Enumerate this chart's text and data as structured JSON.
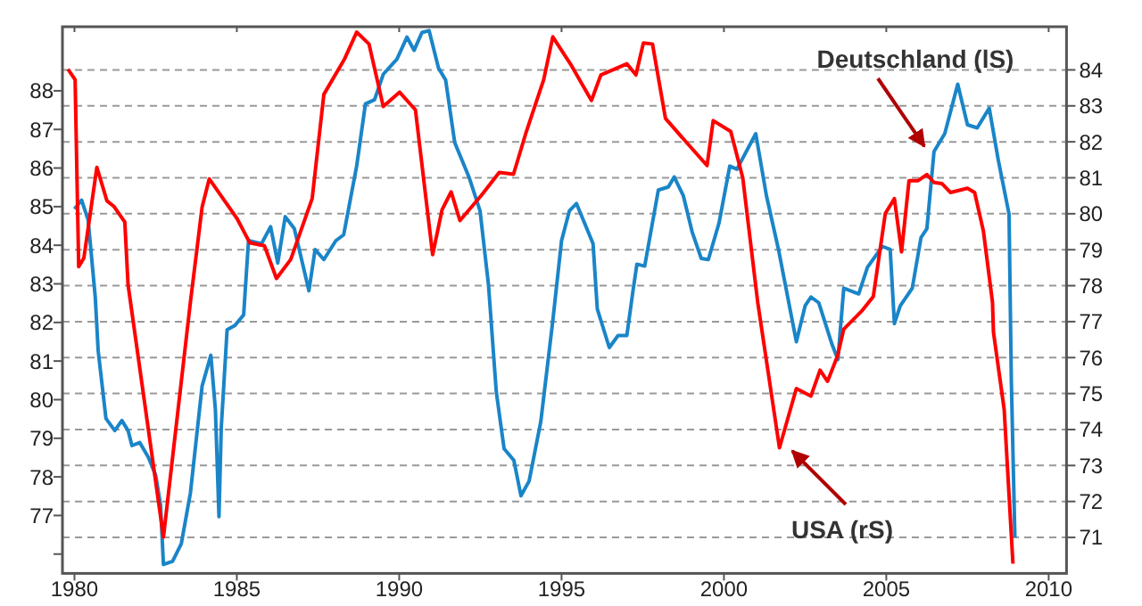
{
  "chart_data": {
    "type": "line",
    "xlim": [
      1979.63,
      2010.55
    ],
    "xticks": [
      1980,
      1985,
      1990,
      1995,
      2000,
      2005,
      2010
    ],
    "ylim": [
      75.5,
      89.66
    ],
    "yticks": [
      {
        "value": 76,
        "label": null
      },
      77,
      78,
      79,
      80,
      81,
      82,
      83,
      84,
      85,
      86,
      87,
      88
    ],
    "y2lim": [
      70,
      85.2
    ],
    "y2ticks": [
      71,
      72,
      73,
      74,
      75,
      76,
      77,
      78,
      79,
      80,
      81,
      82,
      83,
      84
    ],
    "grid": "y",
    "marker": "none",
    "line_style": "solid",
    "annotations": [
      "Deutschland (lS)",
      "USA (rS)"
    ],
    "series": [
      {
        "color": "#1a85c8",
        "axis": "y",
        "x": [
          1980.0,
          1980.22,
          1980.42,
          1980.64,
          1980.73,
          1980.97,
          1981.24,
          1981.46,
          1981.65,
          1981.77,
          1982.01,
          1982.28,
          1982.5,
          1982.65,
          1982.74,
          1983.02,
          1983.29,
          1983.57,
          1983.93,
          1984.2,
          1984.34,
          1984.45,
          1984.52,
          1984.7,
          1984.94,
          1985.21,
          1985.36,
          1985.76,
          1986.04,
          1986.26,
          1986.49,
          1986.77,
          1987.22,
          1987.41,
          1987.68,
          1988.05,
          1988.29,
          1988.69,
          1988.96,
          1989.24,
          1989.51,
          1989.93,
          1990.24,
          1990.46,
          1990.7,
          1990.92,
          1991.21,
          1991.43,
          1991.71,
          1992.16,
          1992.49,
          1992.75,
          1992.99,
          1993.23,
          1993.53,
          1993.75,
          1994.0,
          1994.36,
          1994.73,
          1995.0,
          1995.24,
          1995.46,
          1995.97,
          1996.1,
          1996.47,
          1996.74,
          1997.01,
          1997.2,
          1997.32,
          1997.56,
          1997.98,
          1998.29,
          1998.47,
          1998.75,
          1999.02,
          1999.3,
          1999.52,
          1999.85,
          2000.18,
          2000.4,
          2000.98,
          2001.31,
          2001.68,
          2002.23,
          2002.5,
          2002.68,
          2002.92,
          2003.33,
          2003.51,
          2003.69,
          2004.15,
          2004.42,
          2004.88,
          2005.12,
          2005.25,
          2005.43,
          2005.8,
          2006.07,
          2006.25,
          2006.47,
          2006.8,
          2007.2,
          2007.5,
          2007.8,
          2008.17,
          2008.45,
          2008.78,
          2008.85,
          2008.96
        ],
        "values": [
          84.94,
          85.17,
          84.66,
          82.66,
          81.27,
          79.51,
          79.2,
          79.46,
          79.2,
          78.81,
          78.89,
          78.5,
          78.04,
          77.28,
          75.73,
          75.81,
          76.27,
          77.58,
          80.35,
          81.15,
          79.74,
          76.97,
          79.27,
          81.81,
          81.92,
          82.2,
          84.12,
          84.04,
          84.48,
          83.54,
          84.74,
          84.43,
          82.82,
          83.89,
          83.63,
          84.12,
          84.27,
          86.05,
          87.66,
          87.77,
          88.43,
          88.82,
          89.39,
          89.05,
          89.51,
          89.56,
          88.59,
          88.28,
          86.66,
          85.74,
          84.89,
          82.97,
          80.2,
          78.73,
          78.43,
          77.51,
          77.89,
          79.43,
          82.04,
          84.12,
          84.89,
          85.08,
          84.04,
          82.35,
          81.35,
          81.66,
          81.66,
          82.82,
          83.51,
          83.46,
          85.43,
          85.51,
          85.77,
          85.28,
          84.35,
          83.66,
          83.63,
          84.58,
          86.05,
          85.97,
          86.89,
          85.28,
          83.89,
          81.5,
          82.43,
          82.66,
          82.51,
          81.43,
          81.04,
          82.89,
          82.74,
          83.43,
          83.97,
          83.89,
          81.97,
          82.43,
          82.89,
          84.2,
          84.43,
          86.43,
          86.89,
          88.17,
          87.12,
          87.04,
          87.55,
          86.2,
          84.81,
          80.51,
          76.43
        ]
      },
      {
        "color": "#ff0000",
        "axis": "y2",
        "x": [
          1979.8,
          1980.02,
          1980.13,
          1980.29,
          1980.69,
          1981.0,
          1981.22,
          1981.55,
          1981.65,
          1982.74,
          1983.57,
          1983.93,
          1984.15,
          1985.01,
          1985.4,
          1985.85,
          1986.22,
          1986.66,
          1987.32,
          1987.68,
          1988.32,
          1988.69,
          1989.07,
          1989.51,
          1990.01,
          1990.5,
          1991.03,
          1991.32,
          1991.6,
          1991.87,
          1992.53,
          1993.08,
          1993.52,
          1993.9,
          1994.45,
          1994.73,
          1995.27,
          1995.92,
          1996.21,
          1997.01,
          1997.29,
          1997.52,
          1997.8,
          1998.2,
          1998.84,
          1999.48,
          1999.67,
          2000.21,
          2000.58,
          2001.04,
          2001.71,
          2002.23,
          2002.68,
          2002.96,
          2003.19,
          2003.5,
          2003.69,
          2004.24,
          2004.6,
          2004.97,
          2005.25,
          2005.47,
          2005.7,
          2005.98,
          2006.25,
          2006.47,
          2006.71,
          2006.98,
          2007.5,
          2007.72,
          2007.99,
          2008.27,
          2008.3,
          2008.63,
          2008.9
        ],
        "values": [
          84.02,
          83.73,
          78.53,
          78.77,
          81.29,
          80.36,
          80.2,
          79.77,
          78.03,
          71.01,
          77.54,
          80.18,
          80.97,
          79.86,
          79.19,
          79.11,
          78.2,
          78.73,
          80.42,
          83.32,
          84.31,
          85.05,
          84.72,
          82.98,
          83.38,
          82.89,
          78.86,
          80.11,
          80.61,
          79.81,
          80.51,
          81.15,
          81.1,
          82.24,
          83.73,
          84.92,
          84.17,
          83.15,
          83.86,
          84.17,
          83.86,
          84.75,
          84.72,
          82.65,
          81.99,
          81.34,
          82.59,
          82.29,
          81.0,
          77.54,
          73.49,
          75.14,
          74.93,
          75.65,
          75.34,
          76.05,
          76.79,
          77.29,
          77.7,
          80.01,
          80.42,
          78.94,
          80.92,
          80.92,
          81.09,
          80.87,
          80.84,
          80.59,
          80.71,
          80.59,
          79.52,
          77.54,
          76.71,
          74.56,
          70.27
        ]
      }
    ]
  }
}
